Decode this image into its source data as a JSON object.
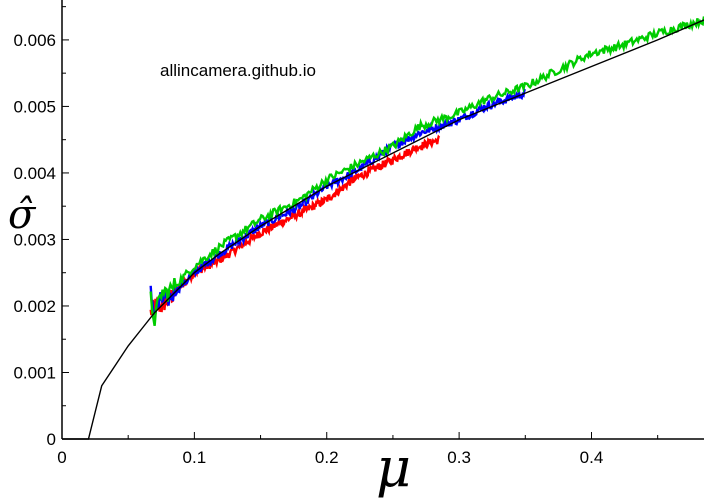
{
  "watermark": "allincamera.github.io",
  "chart_data": {
    "type": "line",
    "title": "",
    "xlabel": "μ",
    "ylabel": "σ̂",
    "xlim": [
      0,
      0.485
    ],
    "ylim": [
      0,
      0.0066
    ],
    "x_ticks": [
      0,
      0.1,
      0.2,
      0.3,
      0.4
    ],
    "x_tick_labels": [
      "0",
      "0.1",
      "0.2",
      "0.3",
      "0.4"
    ],
    "y_ticks": [
      0,
      0.001,
      0.002,
      0.003,
      0.004,
      0.005,
      0.006
    ],
    "y_tick_labels": [
      "0",
      "0.001",
      "0.002",
      "0.003",
      "0.004",
      "0.005",
      "0.006"
    ],
    "grid": false,
    "legend": "none",
    "fit_curve": {
      "color": "#000000",
      "x": [
        0,
        0.02,
        0.025,
        0.03,
        0.04,
        0.05,
        0.06,
        0.07,
        0.08,
        0.1,
        0.12,
        0.15,
        0.2,
        0.25,
        0.3,
        0.35,
        0.4,
        0.45,
        0.485
      ],
      "y": [
        0,
        0,
        0.0004,
        0.0008,
        0.0011,
        0.0014,
        0.00165,
        0.0019,
        0.0021,
        0.0025,
        0.0028,
        0.0032,
        0.0038,
        0.0043,
        0.0048,
        0.0052,
        0.0056,
        0.006,
        0.0063
      ]
    },
    "series": [
      {
        "color": "#ff0000",
        "x": [
          0.067,
          0.07,
          0.075,
          0.08,
          0.09,
          0.1,
          0.12,
          0.15,
          0.18,
          0.2,
          0.22,
          0.25,
          0.27,
          0.285
        ],
        "y": [
          0.0019,
          0.002,
          0.002,
          0.0021,
          0.0023,
          0.0025,
          0.0027,
          0.0031,
          0.0034,
          0.0036,
          0.0039,
          0.0042,
          0.0044,
          0.0045
        ]
      },
      {
        "color": "#0000ff",
        "x": [
          0.067,
          0.07,
          0.075,
          0.08,
          0.09,
          0.1,
          0.12,
          0.15,
          0.18,
          0.2,
          0.22,
          0.25,
          0.27,
          0.3,
          0.32,
          0.35
        ],
        "y": [
          0.0022,
          0.0019,
          0.0021,
          0.0021,
          0.0023,
          0.0025,
          0.0028,
          0.0032,
          0.0035,
          0.0038,
          0.004,
          0.0044,
          0.0046,
          0.0048,
          0.005,
          0.0052
        ]
      },
      {
        "color": "#00cc00",
        "x": [
          0.067,
          0.07,
          0.075,
          0.08,
          0.09,
          0.1,
          0.12,
          0.15,
          0.18,
          0.2,
          0.22,
          0.25,
          0.27,
          0.3,
          0.32,
          0.35,
          0.38,
          0.4,
          0.42,
          0.45,
          0.485
        ],
        "y": [
          0.0021,
          0.0018,
          0.0022,
          0.0022,
          0.0024,
          0.0026,
          0.0029,
          0.0033,
          0.0036,
          0.0039,
          0.0041,
          0.0044,
          0.0047,
          0.0049,
          0.0051,
          0.0053,
          0.0056,
          0.0058,
          0.0059,
          0.0061,
          0.0063
        ]
      }
    ]
  }
}
